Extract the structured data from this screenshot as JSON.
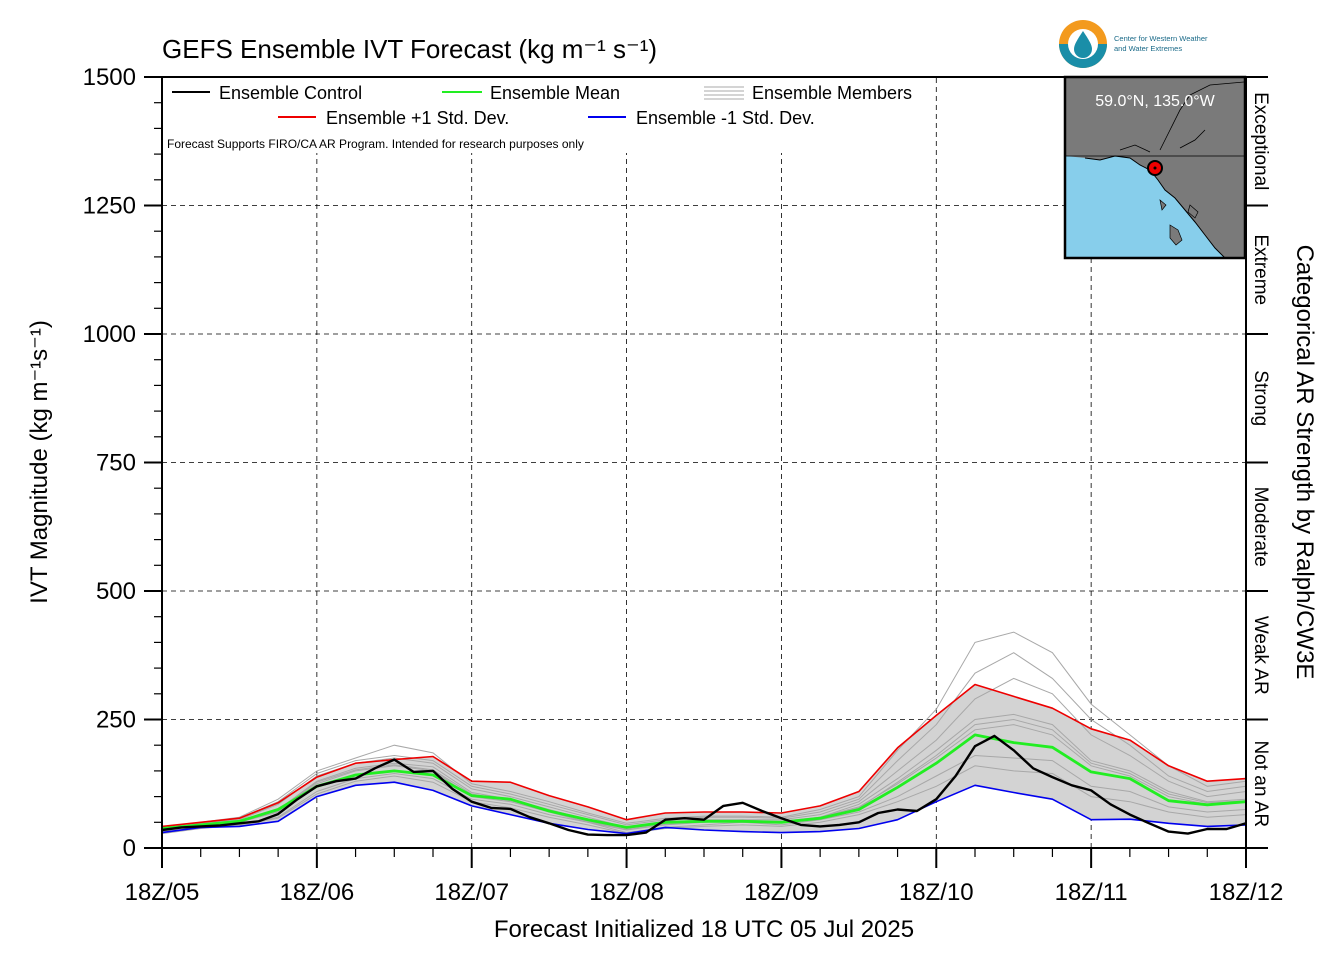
{
  "chart_data": {
    "type": "line",
    "title": "GEFS Ensemble IVT Forecast (kg m⁻¹ s⁻¹)",
    "xlabel": "Forecast Initialized 18 UTC 05 Jul 2025",
    "ylabel": "IVT Magnitude (kg m⁻¹s⁻¹)",
    "right_label": "Categorical AR Strength by Ralph/CW3E",
    "disclaimer": "Forecast Supports FIRO/CA AR Program. Intended for research purposes only",
    "logo_text": [
      "Center for Western Weather",
      "and Water Extremes"
    ],
    "inset_label": "59.0°N, 135.0°W",
    "ylim": [
      0,
      1500
    ],
    "xlim": [
      0,
      168
    ],
    "yticks": [
      0,
      250,
      500,
      750,
      1000,
      1250,
      1500
    ],
    "x_tick_labels": [
      "18Z/05",
      "18Z/06",
      "18Z/07",
      "18Z/08",
      "18Z/09",
      "18Z/10",
      "18Z/11",
      "18Z/12"
    ],
    "x_tick_hours": [
      0,
      24,
      48,
      72,
      96,
      120,
      144,
      168
    ],
    "grid": true,
    "legend_position": "top-left",
    "categories": [
      {
        "label": "Not an AR",
        "range": [
          0,
          250
        ]
      },
      {
        "label": "Weak AR",
        "range": [
          250,
          500
        ]
      },
      {
        "label": "Moderate",
        "range": [
          500,
          750
        ]
      },
      {
        "label": "Strong",
        "range": [
          750,
          1000
        ]
      },
      {
        "label": "Extreme",
        "range": [
          1000,
          1250
        ]
      },
      {
        "label": "Exceptional",
        "range": [
          1250,
          1500
        ]
      }
    ],
    "x_hours": [
      0,
      6,
      12,
      18,
      24,
      30,
      36,
      42,
      48,
      54,
      60,
      66,
      72,
      78,
      84,
      90,
      96,
      102,
      108,
      114,
      120,
      126,
      132,
      138,
      144,
      150,
      156,
      162,
      168
    ],
    "series": [
      {
        "name": "Ensemble Control",
        "color": "#000000",
        "x": [
          0,
          3,
          6,
          9,
          12,
          15,
          18,
          21,
          24,
          27,
          30,
          33,
          36,
          39,
          42,
          45,
          48,
          51,
          54,
          57,
          60,
          63,
          66,
          69,
          72,
          75,
          78,
          81,
          84,
          87,
          90,
          93,
          96,
          99,
          102,
          105,
          108,
          111,
          114,
          117,
          120,
          123,
          126,
          129,
          132,
          135,
          138,
          141,
          144,
          147,
          150,
          153,
          156,
          159,
          162,
          165,
          168
        ],
        "values": [
          35,
          40,
          42,
          44,
          48,
          52,
          66,
          95,
          120,
          130,
          135,
          155,
          172,
          148,
          150,
          115,
          90,
          78,
          76,
          60,
          48,
          35,
          26,
          25,
          25,
          30,
          55,
          58,
          55,
          82,
          88,
          72,
          58,
          45,
          42,
          45,
          50,
          68,
          75,
          72,
          95,
          140,
          198,
          218,
          190,
          155,
          138,
          122,
          112,
          85,
          65,
          48,
          32,
          28,
          37,
          37,
          48
        ]
      },
      {
        "name": "Ensemble Mean",
        "color": "#22ee22",
        "x": [
          0,
          6,
          12,
          18,
          24,
          30,
          36,
          42,
          48,
          54,
          60,
          66,
          72,
          78,
          84,
          90,
          96,
          102,
          108,
          114,
          120,
          126,
          132,
          138,
          144,
          150,
          156,
          162,
          168
        ],
        "values": [
          38,
          45,
          52,
          75,
          120,
          142,
          150,
          142,
          102,
          95,
          72,
          55,
          40,
          50,
          52,
          52,
          50,
          58,
          75,
          118,
          165,
          220,
          205,
          196,
          148,
          135,
          92,
          84,
          90
        ]
      },
      {
        "name": "Ensemble +1 Std. Dev.",
        "color": "#ee0000",
        "x": [
          0,
          6,
          12,
          18,
          24,
          30,
          36,
          42,
          48,
          54,
          60,
          66,
          72,
          78,
          84,
          90,
          96,
          102,
          108,
          114,
          120,
          126,
          132,
          138,
          144,
          150,
          156,
          162,
          168
        ],
        "values": [
          42,
          50,
          58,
          88,
          138,
          165,
          172,
          178,
          130,
          128,
          102,
          80,
          55,
          68,
          70,
          70,
          68,
          82,
          110,
          195,
          258,
          318,
          295,
          272,
          232,
          210,
          160,
          130,
          135
        ]
      },
      {
        "name": "Ensemble -1 Std. Dev.",
        "color": "#0000ee",
        "x": [
          0,
          6,
          12,
          18,
          24,
          30,
          36,
          42,
          48,
          54,
          60,
          66,
          72,
          78,
          84,
          90,
          96,
          102,
          108,
          114,
          120,
          126,
          132,
          138,
          144,
          150,
          156,
          162,
          168
        ],
        "values": [
          30,
          40,
          42,
          52,
          100,
          122,
          128,
          112,
          82,
          65,
          48,
          36,
          28,
          40,
          35,
          32,
          30,
          32,
          38,
          55,
          90,
          122,
          108,
          95,
          55,
          56,
          48,
          42,
          45
        ]
      },
      {
        "name": "Ensemble Members",
        "color": "#a8a8a8",
        "x": [
          0,
          6,
          12,
          18,
          24,
          30,
          36,
          42,
          48,
          54,
          60,
          66,
          72,
          78,
          84,
          90,
          96,
          102,
          108,
          114,
          120,
          126,
          132,
          138,
          144,
          150,
          156,
          162,
          168
        ],
        "members": [
          [
            32,
            42,
            50,
            70,
            125,
            150,
            160,
            150,
            100,
            90,
            70,
            50,
            35,
            45,
            50,
            55,
            50,
            60,
            80,
            125,
            175,
            230,
            240,
            220,
            160,
            140,
            100,
            85,
            90
          ],
          [
            36,
            48,
            55,
            85,
            140,
            165,
            175,
            165,
            115,
            100,
            80,
            60,
            40,
            50,
            55,
            55,
            55,
            65,
            90,
            150,
            210,
            290,
            330,
            300,
            220,
            180,
            130,
            100,
            110
          ],
          [
            30,
            40,
            45,
            60,
            110,
            135,
            145,
            135,
            95,
            85,
            65,
            50,
            30,
            40,
            45,
            50,
            45,
            55,
            70,
            100,
            140,
            180,
            175,
            170,
            120,
            110,
            80,
            70,
            75
          ],
          [
            34,
            44,
            52,
            75,
            130,
            155,
            165,
            158,
            108,
            95,
            75,
            55,
            38,
            48,
            52,
            52,
            52,
            60,
            85,
            135,
            190,
            250,
            260,
            240,
            170,
            150,
            110,
            90,
            95
          ],
          [
            38,
            46,
            58,
            90,
            145,
            170,
            180,
            170,
            120,
            105,
            85,
            65,
            45,
            55,
            60,
            60,
            58,
            70,
            95,
            170,
            240,
            340,
            380,
            330,
            250,
            200,
            140,
            110,
            120
          ],
          [
            28,
            38,
            44,
            58,
            105,
            130,
            140,
            128,
            90,
            78,
            60,
            45,
            28,
            38,
            42,
            45,
            42,
            50,
            65,
            90,
            120,
            160,
            150,
            145,
            100,
            90,
            70,
            60,
            65
          ],
          [
            40,
            50,
            60,
            95,
            150,
            175,
            200,
            185,
            125,
            110,
            90,
            68,
            48,
            58,
            62,
            62,
            60,
            75,
            100,
            190,
            270,
            400,
            420,
            380,
            280,
            220,
            160,
            120,
            130
          ],
          [
            33,
            43,
            50,
            72,
            128,
            152,
            162,
            152,
            105,
            92,
            72,
            52,
            36,
            46,
            50,
            54,
            50,
            58,
            78,
            128,
            180,
            240,
            250,
            230,
            165,
            145,
            105,
            88,
            92
          ]
        ]
      }
    ]
  }
}
